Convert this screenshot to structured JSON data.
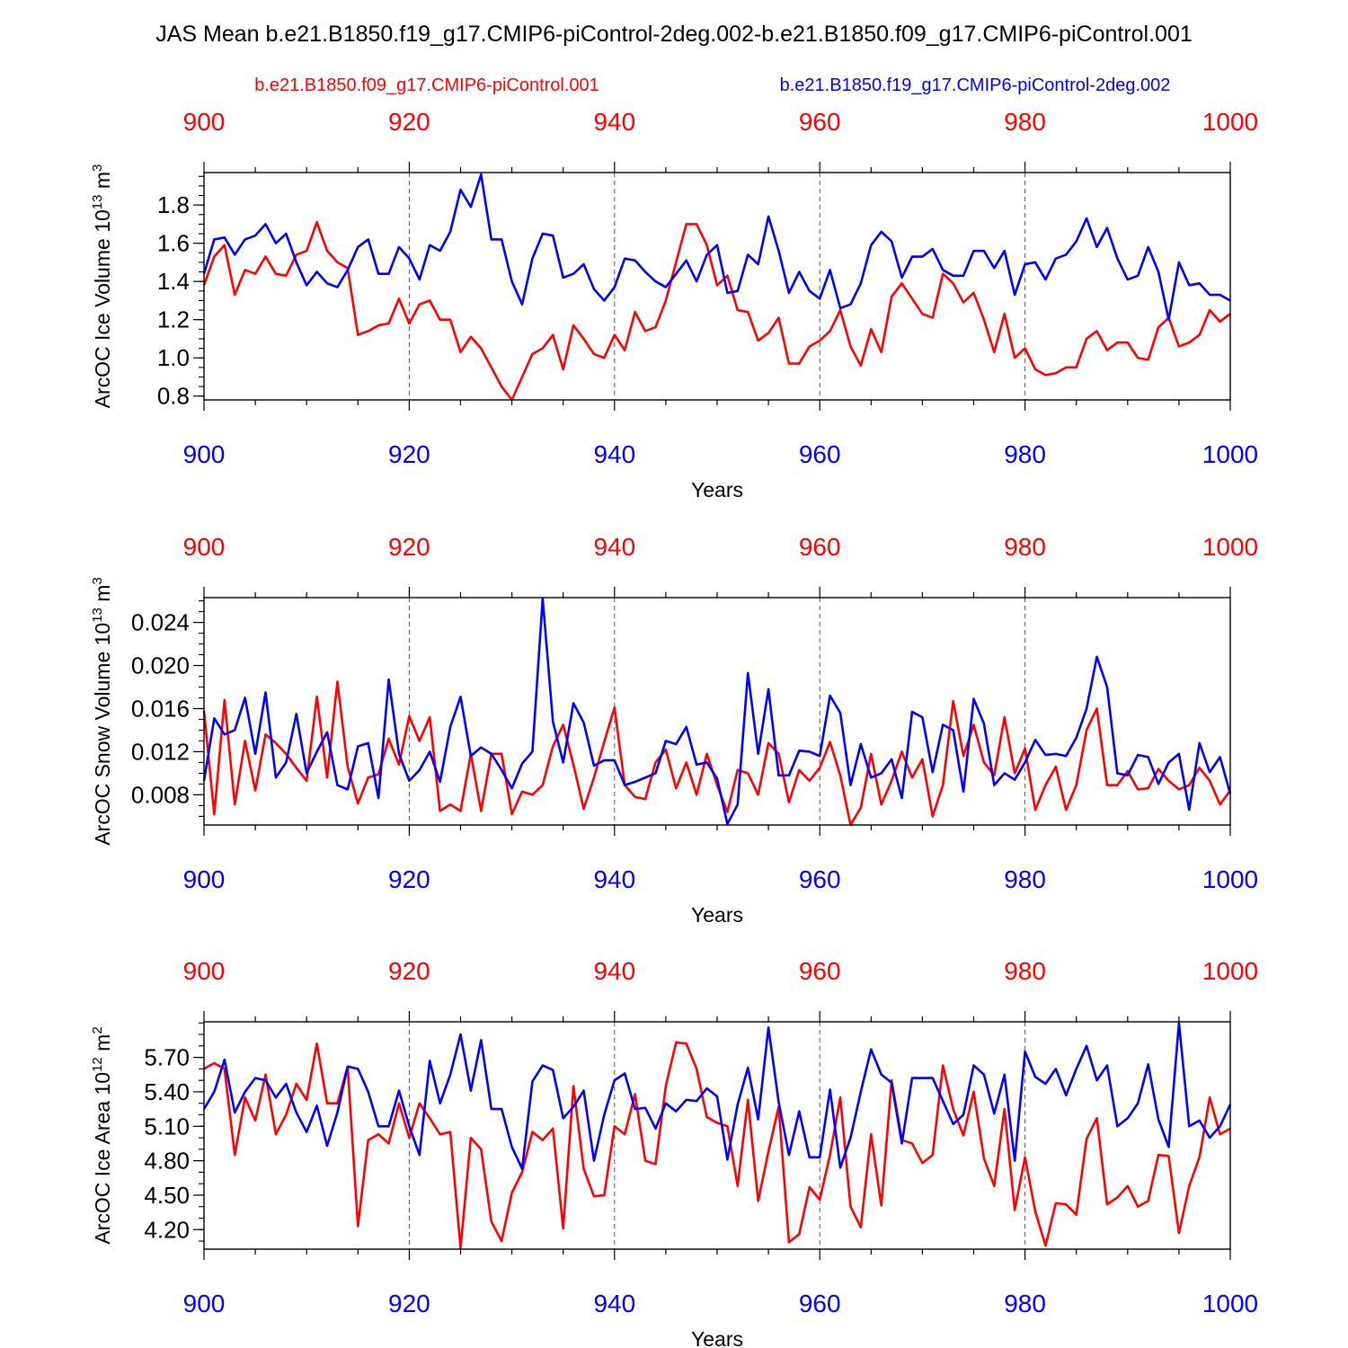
{
  "title": "JAS Mean b.e21.B1850.f19_g17.CMIP6-piControl-2deg.002-b.e21.B1850.f09_g17.CMIP6-piControl.001",
  "legend": {
    "red_label": "b.e21.B1850.f09_g17.CMIP6-piControl.001",
    "blue_label": "b.e21.B1850.f19_g17.CMIP6-piControl-2deg.002"
  },
  "colors": {
    "red": "#ff0000",
    "blue": "#0000ff",
    "axis": "#000000",
    "grid": "#555555"
  },
  "chart_data": [
    {
      "type": "line",
      "ylabel": "ArcOC Ice Volume 10",
      "ylabel_exp": "13",
      "ylabel_unit": " m",
      "ylabel_unit_exp": "3",
      "xlabel": "Years",
      "xlim": [
        900,
        1000
      ],
      "ylim": [
        0.78,
        1.97
      ],
      "xticks": [
        900,
        920,
        940,
        960,
        980,
        1000
      ],
      "yticks": [
        0.8,
        1.0,
        1.2,
        1.4,
        1.6,
        1.8
      ],
      "ytick_labels": [
        "0.8",
        "1.0",
        "1.2",
        "1.4",
        "1.6",
        "1.8"
      ],
      "yminor_step": 0.05,
      "series": [
        {
          "name": "b.e21.B1850.f09_g17.CMIP6-piControl.001",
          "color": "red",
          "x_start": 900,
          "values": [
            1.38,
            1.53,
            1.59,
            1.33,
            1.46,
            1.44,
            1.53,
            1.44,
            1.43,
            1.54,
            1.56,
            1.71,
            1.56,
            1.5,
            1.47,
            1.12,
            1.14,
            1.17,
            1.18,
            1.31,
            1.18,
            1.28,
            1.3,
            1.2,
            1.2,
            1.03,
            1.11,
            1.05,
            0.95,
            0.85,
            0.78,
            0.9,
            1.02,
            1.05,
            1.12,
            0.94,
            1.17,
            1.1,
            1.02,
            1.0,
            1.12,
            1.04,
            1.24,
            1.14,
            1.16,
            1.3,
            1.5,
            1.7,
            1.7,
            1.59,
            1.38,
            1.43,
            1.25,
            1.24,
            1.09,
            1.13,
            1.21,
            0.97,
            0.97,
            1.06,
            1.09,
            1.14,
            1.25,
            1.06,
            0.96,
            1.15,
            1.03,
            1.32,
            1.39,
            1.31,
            1.23,
            1.21,
            1.44,
            1.39,
            1.29,
            1.34,
            1.2,
            1.03,
            1.23,
            1.0,
            1.05,
            0.94,
            0.91,
            0.92,
            0.95,
            0.95,
            1.1,
            1.14,
            1.04,
            1.08,
            1.08,
            1.0,
            0.99,
            1.16,
            1.21,
            1.06,
            1.08,
            1.12,
            1.25,
            1.19,
            1.23
          ]
        },
        {
          "name": "b.e21.B1850.f19_g17.CMIP6-piControl-2deg.002",
          "color": "blue",
          "x_start": 900,
          "values": [
            1.44,
            1.62,
            1.63,
            1.54,
            1.62,
            1.64,
            1.7,
            1.6,
            1.65,
            1.5,
            1.38,
            1.45,
            1.39,
            1.37,
            1.46,
            1.58,
            1.62,
            1.44,
            1.44,
            1.58,
            1.52,
            1.41,
            1.59,
            1.56,
            1.66,
            1.88,
            1.79,
            1.96,
            1.62,
            1.62,
            1.4,
            1.28,
            1.52,
            1.65,
            1.64,
            1.42,
            1.44,
            1.49,
            1.36,
            1.3,
            1.37,
            1.52,
            1.51,
            1.45,
            1.4,
            1.37,
            1.44,
            1.51,
            1.4,
            1.54,
            1.59,
            1.34,
            1.35,
            1.54,
            1.49,
            1.74,
            1.56,
            1.34,
            1.45,
            1.35,
            1.31,
            1.46,
            1.26,
            1.28,
            1.39,
            1.59,
            1.66,
            1.61,
            1.42,
            1.53,
            1.53,
            1.57,
            1.46,
            1.43,
            1.43,
            1.56,
            1.56,
            1.47,
            1.56,
            1.33,
            1.49,
            1.5,
            1.41,
            1.52,
            1.54,
            1.61,
            1.73,
            1.58,
            1.68,
            1.52,
            1.41,
            1.43,
            1.58,
            1.45,
            1.2,
            1.5,
            1.38,
            1.39,
            1.33,
            1.33,
            1.3
          ]
        }
      ]
    },
    {
      "type": "line",
      "ylabel": "ArcOC Snow Volume 10",
      "ylabel_exp": "13",
      "ylabel_unit": " m",
      "ylabel_unit_exp": "3",
      "xlabel": "Years",
      "xlim": [
        900,
        1000
      ],
      "ylim": [
        0.0052,
        0.0263
      ],
      "xticks": [
        900,
        920,
        940,
        960,
        980,
        1000
      ],
      "yticks": [
        0.008,
        0.012,
        0.016,
        0.02,
        0.024
      ],
      "ytick_labels": [
        "0.008",
        "0.012",
        "0.016",
        "0.020",
        "0.024"
      ],
      "yminor_step": 0.001,
      "series": [
        {
          "name": "b.e21.B1850.f09_g17.CMIP6-piControl.001",
          "color": "red",
          "x_start": 900,
          "values": [
            0.0158,
            0.0062,
            0.0168,
            0.0071,
            0.013,
            0.0084,
            0.0136,
            0.0128,
            0.0118,
            0.0105,
            0.0093,
            0.0171,
            0.0096,
            0.0185,
            0.0106,
            0.0072,
            0.0096,
            0.0099,
            0.0132,
            0.0108,
            0.0153,
            0.013,
            0.0152,
            0.0065,
            0.0071,
            0.0065,
            0.0118,
            0.0065,
            0.0118,
            0.0118,
            0.0062,
            0.0083,
            0.008,
            0.0089,
            0.0125,
            0.0145,
            0.0108,
            0.0067,
            0.0096,
            0.0129,
            0.0161,
            0.0089,
            0.0078,
            0.0076,
            0.011,
            0.0122,
            0.0086,
            0.011,
            0.008,
            0.0118,
            0.0089,
            0.0064,
            0.0103,
            0.01,
            0.008,
            0.0128,
            0.0118,
            0.0073,
            0.0103,
            0.0093,
            0.0105,
            0.0129,
            0.0098,
            0.0052,
            0.0068,
            0.0118,
            0.0071,
            0.0093,
            0.012,
            0.0096,
            0.0113,
            0.006,
            0.0089,
            0.0167,
            0.0116,
            0.0145,
            0.011,
            0.0098,
            0.0152,
            0.01,
            0.0123,
            0.0066,
            0.0089,
            0.0106,
            0.0066,
            0.0089,
            0.014,
            0.016,
            0.0089,
            0.0089,
            0.0102,
            0.0085,
            0.0086,
            0.0104,
            0.0093,
            0.0085,
            0.0089,
            0.0105,
            0.0093,
            0.0071,
            0.0084
          ]
        },
        {
          "name": "b.e21.B1850.f19_g17.CMIP6-piControl-2deg.002",
          "color": "blue",
          "x_start": 900,
          "values": [
            0.0093,
            0.0151,
            0.0136,
            0.014,
            0.017,
            0.0118,
            0.0175,
            0.0096,
            0.011,
            0.0155,
            0.01,
            0.012,
            0.0138,
            0.0089,
            0.0085,
            0.0125,
            0.0128,
            0.0077,
            0.0187,
            0.0118,
            0.0093,
            0.0103,
            0.012,
            0.0092,
            0.0143,
            0.0171,
            0.0116,
            0.0124,
            0.0118,
            0.0103,
            0.0086,
            0.0109,
            0.012,
            0.0262,
            0.0148,
            0.011,
            0.0165,
            0.0147,
            0.0107,
            0.0112,
            0.0112,
            0.0089,
            0.0092,
            0.0096,
            0.01,
            0.013,
            0.0127,
            0.0143,
            0.0108,
            0.011,
            0.0095,
            0.0053,
            0.0071,
            0.0193,
            0.0118,
            0.0178,
            0.0098,
            0.0098,
            0.0121,
            0.012,
            0.0116,
            0.0172,
            0.0156,
            0.0089,
            0.0127,
            0.0096,
            0.01,
            0.0113,
            0.0077,
            0.0157,
            0.0152,
            0.0101,
            0.0145,
            0.014,
            0.0083,
            0.0169,
            0.0146,
            0.0089,
            0.01,
            0.0094,
            0.011,
            0.0131,
            0.0117,
            0.0118,
            0.0116,
            0.0133,
            0.016,
            0.0208,
            0.018,
            0.01,
            0.0098,
            0.0117,
            0.0115,
            0.009,
            0.011,
            0.0118,
            0.0066,
            0.0128,
            0.0101,
            0.0115,
            0.0081
          ]
        }
      ]
    },
    {
      "type": "line",
      "ylabel": "ArcOC Ice Area 10",
      "ylabel_exp": "12",
      "ylabel_unit": " m",
      "ylabel_unit_exp": "2",
      "xlabel": "Years",
      "xlim": [
        900,
        1000
      ],
      "ylim": [
        4.03,
        6.01
      ],
      "xticks": [
        900,
        920,
        940,
        960,
        980,
        1000
      ],
      "yticks": [
        4.2,
        4.5,
        4.8,
        5.1,
        5.4,
        5.7
      ],
      "ytick_labels": [
        "4.20",
        "4.50",
        "4.80",
        "5.10",
        "5.40",
        "5.70"
      ],
      "yminor_step": 0.1,
      "series": [
        {
          "name": "b.e21.B1850.f09_g17.CMIP6-piControl.001",
          "color": "red",
          "x_start": 900,
          "values": [
            5.6,
            5.65,
            5.6,
            4.85,
            5.35,
            5.15,
            5.55,
            5.03,
            5.2,
            5.47,
            5.33,
            5.82,
            5.3,
            5.3,
            5.62,
            4.23,
            4.98,
            5.03,
            4.95,
            5.3,
            5.0,
            5.3,
            5.17,
            5.03,
            5.05,
            4.04,
            5.0,
            4.9,
            4.27,
            4.1,
            4.52,
            4.7,
            5.05,
            4.98,
            5.08,
            4.21,
            5.45,
            4.73,
            4.49,
            4.5,
            5.1,
            5.03,
            5.38,
            4.8,
            4.77,
            5.45,
            5.83,
            5.82,
            5.6,
            5.18,
            5.13,
            5.1,
            4.58,
            5.33,
            4.45,
            4.88,
            5.27,
            4.09,
            4.16,
            4.57,
            4.46,
            4.85,
            5.35,
            4.4,
            4.22,
            5.03,
            4.41,
            5.5,
            4.98,
            4.95,
            4.78,
            4.85,
            5.63,
            5.25,
            5.02,
            5.4,
            4.82,
            4.58,
            5.25,
            4.37,
            4.83,
            4.36,
            4.06,
            4.43,
            4.42,
            4.33,
            4.99,
            5.17,
            4.42,
            4.48,
            4.58,
            4.4,
            4.45,
            4.85,
            4.84,
            4.17,
            4.58,
            4.83,
            5.35,
            5.03,
            5.08
          ]
        },
        {
          "name": "b.e21.B1850.f19_g17.CMIP6-piControl-2deg.002",
          "color": "blue",
          "x_start": 900,
          "values": [
            5.25,
            5.4,
            5.68,
            5.22,
            5.4,
            5.52,
            5.5,
            5.35,
            5.47,
            5.22,
            5.05,
            5.28,
            4.93,
            5.22,
            5.62,
            5.6,
            5.4,
            5.1,
            5.1,
            5.41,
            5.1,
            4.85,
            5.67,
            5.3,
            5.55,
            5.9,
            5.41,
            5.85,
            5.25,
            5.25,
            4.92,
            4.73,
            5.49,
            5.63,
            5.59,
            5.17,
            5.27,
            5.41,
            4.8,
            5.2,
            5.5,
            5.56,
            5.25,
            5.26,
            5.08,
            5.3,
            5.23,
            5.33,
            5.32,
            5.43,
            5.36,
            4.81,
            5.29,
            5.61,
            5.16,
            5.96,
            5.31,
            4.85,
            5.23,
            4.83,
            4.83,
            5.42,
            4.74,
            5.0,
            5.4,
            5.77,
            5.55,
            5.48,
            4.95,
            5.52,
            5.52,
            5.52,
            5.32,
            5.12,
            5.2,
            5.63,
            5.55,
            5.21,
            5.55,
            4.8,
            5.75,
            5.53,
            5.47,
            5.6,
            5.37,
            5.6,
            5.8,
            5.5,
            5.63,
            5.1,
            5.17,
            5.3,
            5.64,
            5.16,
            4.92,
            6.0,
            5.1,
            5.15,
            5.0,
            5.1,
            5.29
          ]
        }
      ]
    }
  ]
}
